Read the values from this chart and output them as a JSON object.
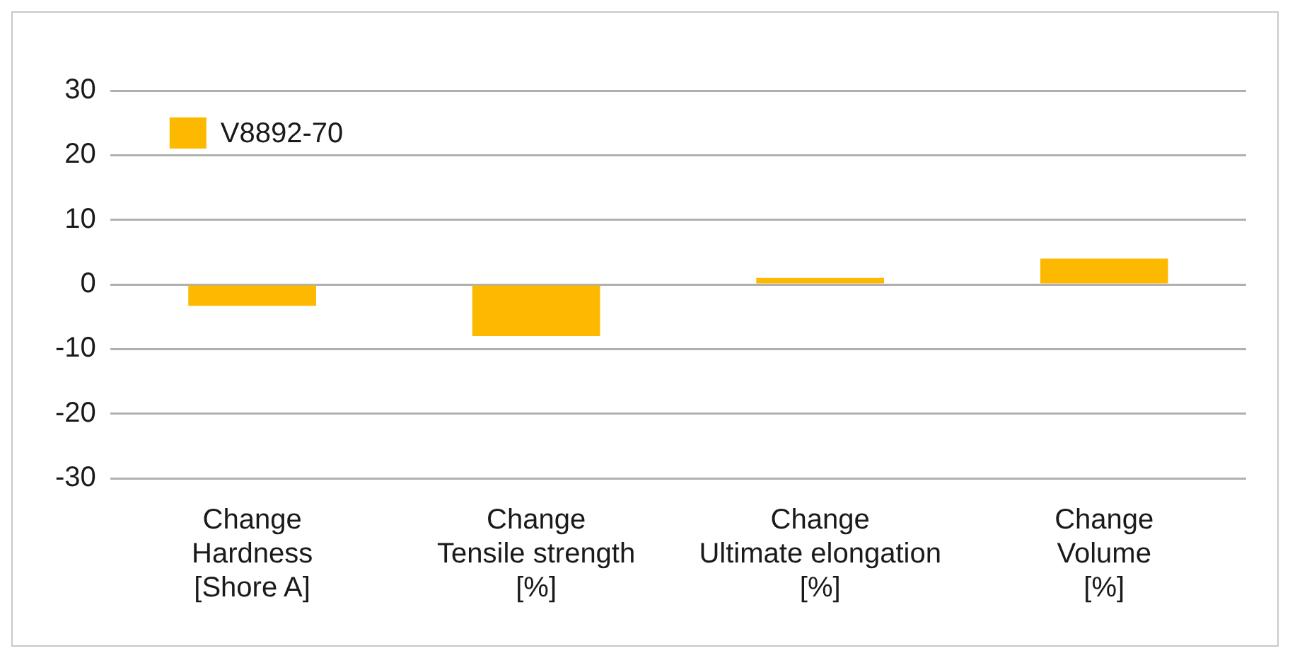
{
  "chart_data": {
    "type": "bar",
    "categories": [
      "Change\nHardness\n[Shore A]",
      "Change\nTensile strength\n[%]",
      "Change\nUltimate elongation\n[%]",
      "Change\nVolume\n[%]"
    ],
    "series": [
      {
        "name": "V8892-70",
        "color": "#fdb900",
        "values": [
          -3.3,
          -8,
          1,
          4
        ]
      }
    ],
    "ylim": [
      -30,
      30
    ],
    "yticks": [
      -30,
      -20,
      -10,
      0,
      10,
      20,
      30
    ],
    "grid": "y",
    "legend": "top left"
  }
}
